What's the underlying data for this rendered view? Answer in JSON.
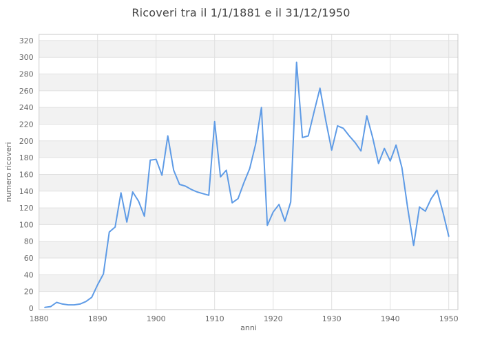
{
  "chart_data": {
    "type": "line",
    "title": "Ricoveri tra il 1/1/1881 e il 31/12/1950",
    "xlabel": "anni",
    "ylabel": "numero ricoveri",
    "legend": "none",
    "grid": "horizontal and vertical lines with alternating horizontal bands",
    "xlim": [
      1880,
      1951.6
    ],
    "ylim": [
      0,
      326
    ],
    "x_ticks": [
      1880,
      1890,
      1900,
      1910,
      1920,
      1930,
      1940,
      1950
    ],
    "y_ticks": [
      0,
      20,
      40,
      60,
      80,
      100,
      120,
      140,
      160,
      180,
      200,
      220,
      240,
      260,
      280,
      300,
      320
    ],
    "x": [
      1881,
      1882,
      1883,
      1884,
      1885,
      1886,
      1887,
      1888,
      1889,
      1890,
      1891,
      1892,
      1893,
      1894,
      1895,
      1896,
      1897,
      1898,
      1899,
      1900,
      1901,
      1902,
      1903,
      1904,
      1905,
      1906,
      1907,
      1908,
      1909,
      1910,
      1911,
      1912,
      1913,
      1914,
      1915,
      1916,
      1917,
      1918,
      1919,
      1920,
      1921,
      1922,
      1923,
      1924,
      1925,
      1926,
      1927,
      1928,
      1929,
      1930,
      1931,
      1932,
      1933,
      1934,
      1935,
      1936,
      1937,
      1938,
      1939,
      1940,
      1941,
      1942,
      1943,
      1944,
      1945,
      1946,
      1947,
      1948,
      1949,
      1950
    ],
    "values": [
      1,
      2,
      7,
      5,
      4,
      4,
      5,
      8,
      13,
      28,
      41,
      91,
      97,
      138,
      103,
      139,
      128,
      110,
      177,
      178,
      159,
      206,
      165,
      148,
      146,
      142,
      139,
      137,
      135,
      223,
      157,
      165,
      126,
      131,
      150,
      167,
      196,
      240,
      99,
      115,
      124,
      104,
      127,
      294,
      204,
      206,
      235,
      263,
      224,
      189,
      218,
      215,
      206,
      198,
      188,
      230,
      204,
      173,
      191,
      176,
      195,
      168,
      119,
      75,
      121,
      116,
      131,
      141,
      115,
      86
    ],
    "colors": {
      "line": "#5e9be6",
      "band": "#f2f2f2",
      "grid": "#e0e0e0",
      "border": "#c9c9c9",
      "tick_text": "#666666",
      "title_text": "#444444"
    }
  }
}
